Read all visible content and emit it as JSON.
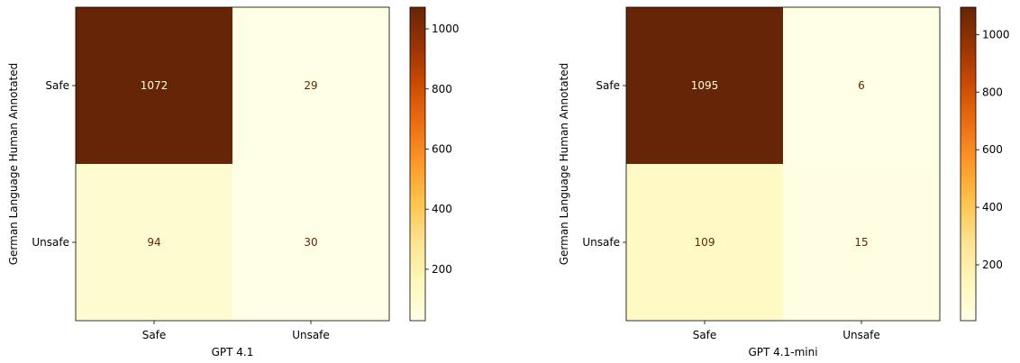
{
  "chart_data": [
    {
      "type": "heatmap",
      "rows": [
        "Safe",
        "Unsafe"
      ],
      "cols": [
        "Safe",
        "Unsafe"
      ],
      "values": [
        [
          1072,
          29
        ],
        [
          94,
          30
        ]
      ],
      "xlabel": "GPT 4.1",
      "ylabel": "German Language Human Annotated",
      "colorbar": {
        "min": 29,
        "max": 1072,
        "ticks": [
          200,
          400,
          600,
          800,
          1000
        ]
      },
      "colormap": [
        "#ffffe5",
        "#fff7bc",
        "#fee391",
        "#fec44f",
        "#fe9929",
        "#ec7014",
        "#cc4c02",
        "#993404",
        "#662506"
      ]
    },
    {
      "type": "heatmap",
      "rows": [
        "Safe",
        "Unsafe"
      ],
      "cols": [
        "Safe",
        "Unsafe"
      ],
      "values": [
        [
          1095,
          6
        ],
        [
          109,
          15
        ]
      ],
      "xlabel": "GPT 4.1-mini",
      "ylabel": "German Language Human Annotated",
      "colorbar": {
        "min": 6,
        "max": 1095,
        "ticks": [
          200,
          400,
          600,
          800,
          1000
        ]
      },
      "colormap": [
        "#ffffe5",
        "#fff7bc",
        "#fee391",
        "#fec44f",
        "#fe9929",
        "#ec7014",
        "#cc4c02",
        "#993404",
        "#662506"
      ]
    }
  ]
}
